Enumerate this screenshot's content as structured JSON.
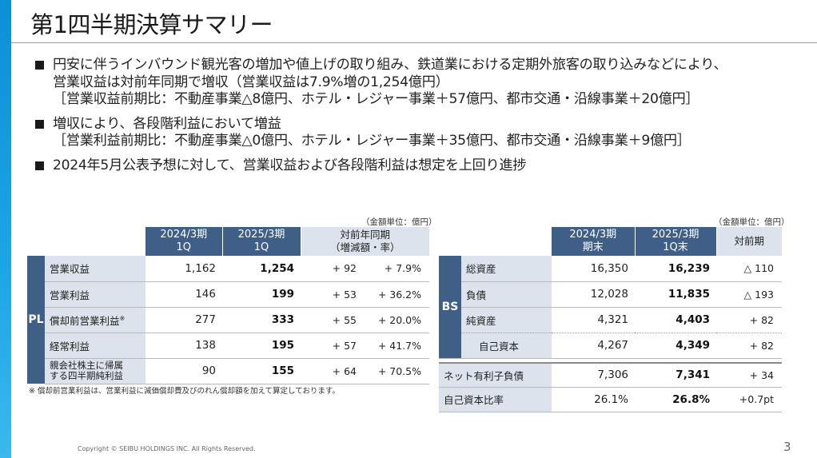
{
  "title": "第1四半期決算サマリー",
  "bullets": [
    {
      "lines": [
        "円安に伴うインバウンド観光客の増加や値上げの取り組み、鉄道業における定期外旅客の取り込みなどにより、",
        "営業収益は対前年同期で増収（営業収益は7.9%増の1,254億円）",
        "［営業収益前期比：不動産事業△8億円、ホテル・レジャー事業＋57億円、都市交通・沿線事業＋20億円］"
      ]
    },
    {
      "lines": [
        "増収により、各段階利益において増益",
        "［営業利益前期比：不動産事業△0億円、ホテル・レジャー事業＋35億円、都市交通・沿線事業＋9億円］"
      ]
    },
    {
      "lines": [
        "2024年5月公表予想に対して、営業収益および各段階利益は想定を上回り進捗"
      ]
    }
  ],
  "pl_table": {
    "unit": "（金額単位：億円）",
    "side_label": "PL",
    "headers": {
      "col1_line1": "2024/3期",
      "col1_line2": "1Q",
      "col2_line1": "2025/3期",
      "col2_line2": "1Q",
      "col3_line1": "対前年同期",
      "col3_line2": "（増減額・率）"
    },
    "rows": [
      {
        "label": "営業収益",
        "v2024": "1,162",
        "v2025": "1,254",
        "diff": "+ 92",
        "rate": "+ 7.9%"
      },
      {
        "label": "営業利益",
        "v2024": "146",
        "v2025": "199",
        "diff": "+ 53",
        "rate": "+ 36.2%"
      },
      {
        "label": "償却前営業利益",
        "label_sup": "※",
        "v2024": "277",
        "v2025": "333",
        "diff": "+ 55",
        "rate": "+ 20.0%"
      },
      {
        "label": "経常利益",
        "v2024": "138",
        "v2025": "195",
        "diff": "+ 57",
        "rate": "+ 41.7%"
      },
      {
        "label_line1": "親会社株主に帰属",
        "label_line2": "する四半期純利益",
        "v2024": "90",
        "v2025": "155",
        "diff": "+ 64",
        "rate": "+ 70.5%"
      }
    ],
    "note": "※ 償却前営業利益は、営業利益に減価償却費及びのれん償却額を加えて算定しております。"
  },
  "bs_table": {
    "unit": "（金額単位：億円）",
    "side_label": "BS",
    "headers": {
      "col1_line1": "2024/3期",
      "col1_line2": "期末",
      "col2_line1": "2025/3期",
      "col2_line2": "1Q末",
      "col3": "対前期"
    },
    "rows": [
      {
        "label": "総資産",
        "v2024": "16,350",
        "v2025": "16,239",
        "diff": "△ 110"
      },
      {
        "label": "負債",
        "v2024": "12,028",
        "v2025": "11,835",
        "diff": "△ 193"
      },
      {
        "label": "純資産",
        "v2024": "4,321",
        "v2025": "4,403",
        "diff": "+ 82"
      },
      {
        "label": "自己資本",
        "v2024": "4,267",
        "v2025": "4,349",
        "diff": "+ 82"
      }
    ],
    "extra_rows": [
      {
        "label": "ネット有利子負債",
        "v2024": "7,306",
        "v2025": "7,341",
        "diff": "+ 34"
      },
      {
        "label": "自己資本比率",
        "v2024": "26.1%",
        "v2025": "26.8%",
        "diff": "+0.7pt"
      }
    ]
  },
  "footer": {
    "copyright": "Copyright © SEIBU HOLDINGS INC. All Rights Reserved.",
    "page": "3"
  }
}
